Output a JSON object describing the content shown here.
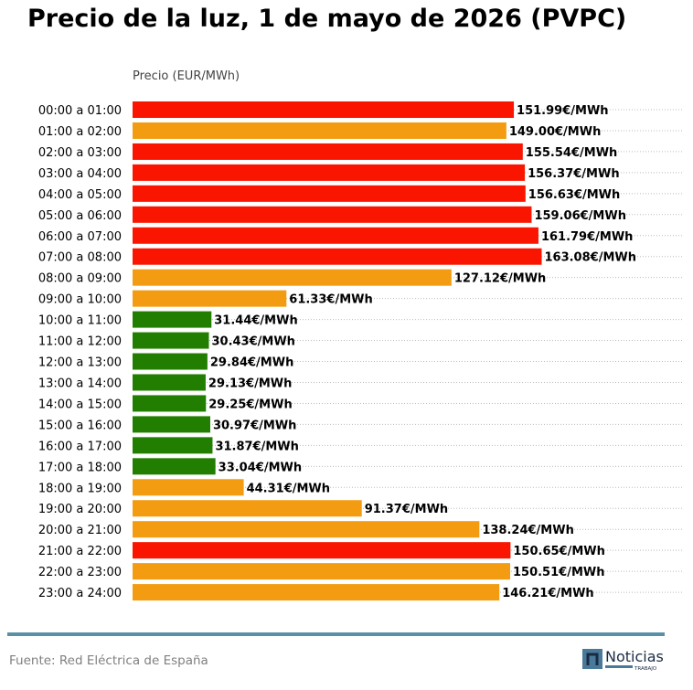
{
  "title": "Precio de la luz, 1 de mayo de 2026 (PVPC)",
  "source": "Fuente: Red Eléctrica de España",
  "logo": {
    "text": "Noticias",
    "subtext": "TRABAJO"
  },
  "colors": {
    "high": "#f91500",
    "mid": "#f39c12",
    "low": "#217e00",
    "footer": "#5b8fa8"
  },
  "chart_data": {
    "type": "bar",
    "orientation": "horizontal",
    "title": "Precio de la luz, 1 de mayo de 2026 (PVPC)",
    "xlabel": "Precio (EUR/MWh)",
    "value_suffix": "€/MWh",
    "grid": "dotted horizontal lines",
    "categories": [
      "00:00 a 01:00",
      "01:00 a 02:00",
      "02:00 a 03:00",
      "03:00 a 04:00",
      "04:00 a 05:00",
      "05:00 a 06:00",
      "06:00 a 07:00",
      "07:00 a 08:00",
      "08:00 a 09:00",
      "09:00 a 10:00",
      "10:00 a 11:00",
      "11:00 a 12:00",
      "12:00 a 13:00",
      "13:00 a 14:00",
      "14:00 a 15:00",
      "15:00 a 16:00",
      "16:00 a 17:00",
      "17:00 a 18:00",
      "18:00 a 19:00",
      "19:00 a 20:00",
      "20:00 a 21:00",
      "21:00 a 22:00",
      "22:00 a 23:00",
      "23:00 a 24:00"
    ],
    "values": [
      151.99,
      149.0,
      155.54,
      156.37,
      156.63,
      159.06,
      161.79,
      163.08,
      127.12,
      61.33,
      31.44,
      30.43,
      29.84,
      29.13,
      29.25,
      30.97,
      31.87,
      33.04,
      44.31,
      91.37,
      138.24,
      150.65,
      150.51,
      146.21
    ],
    "levels": [
      "high",
      "mid",
      "high",
      "high",
      "high",
      "high",
      "high",
      "high",
      "mid",
      "mid",
      "low",
      "low",
      "low",
      "low",
      "low",
      "low",
      "low",
      "low",
      "mid",
      "mid",
      "mid",
      "high",
      "mid",
      "mid"
    ]
  }
}
